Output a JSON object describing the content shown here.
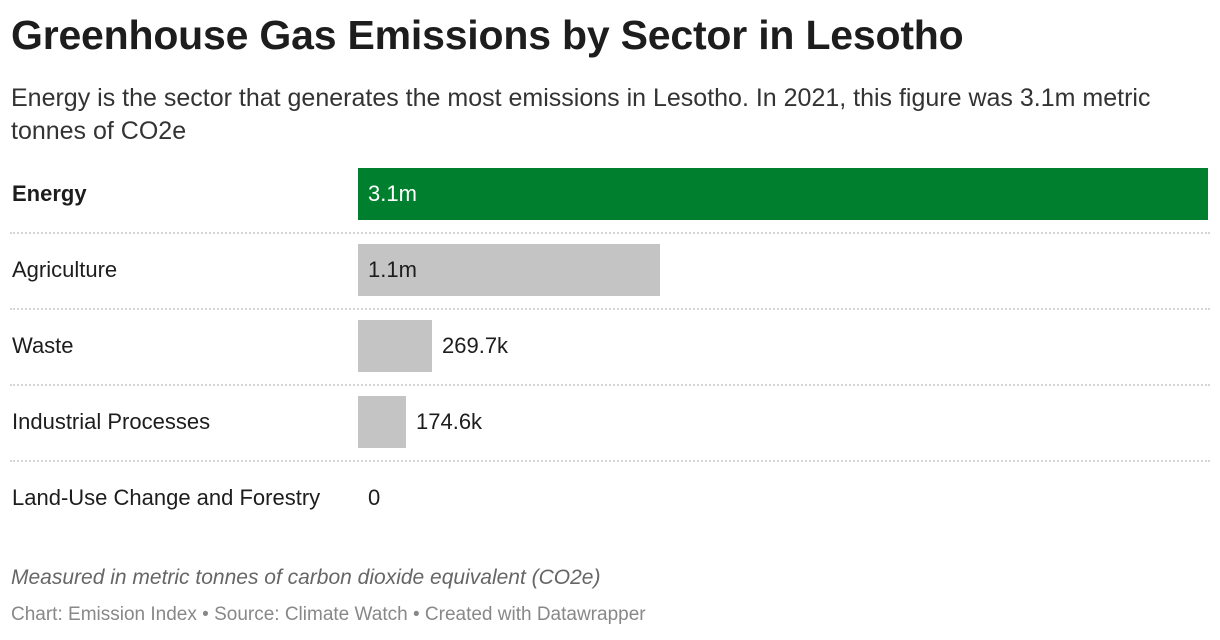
{
  "title": "Greenhouse Gas Emissions by Sector in Lesotho",
  "subtitle": "Energy is the sector that generates the most emissions in Lesotho. In 2021, this figure was 3.1m metric tonnes of CO2e",
  "notes": "Measured in metric tonnes of carbon dioxide equivalent (CO2e)",
  "footer": {
    "chart_by": "Chart: Emission Index",
    "source": "Source: Climate Watch",
    "created_with": "Created with Datawrapper",
    "separator": "•"
  },
  "colors": {
    "highlight": "#00802f",
    "default_bar": "#c4c4c4",
    "separator": "#d6d6d6"
  },
  "chart_data": {
    "type": "bar",
    "orientation": "horizontal",
    "categories": [
      "Energy",
      "Agriculture",
      "Waste",
      "Industrial Processes",
      "Land-Use Change and Forestry"
    ],
    "values": [
      3100000,
      1100000,
      269700,
      174600,
      0
    ],
    "labels": [
      "3.1m",
      "1.1m",
      "269.7k",
      "174.6k",
      "0"
    ],
    "highlighted": "Energy",
    "xlim": [
      0,
      3100000
    ]
  }
}
